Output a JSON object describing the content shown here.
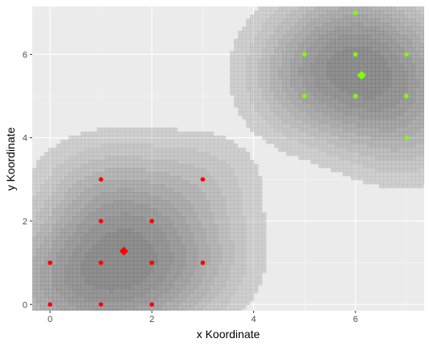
{
  "chart_data": {
    "type": "scatter",
    "title": "",
    "xlabel": "x Koordinate",
    "ylabel": "y Koordinate",
    "xlim": [
      -0.35,
      7.35
    ],
    "ylim": [
      -0.15,
      7.15
    ],
    "x_ticks": [
      0,
      2,
      4,
      6
    ],
    "y_ticks": [
      0,
      2,
      4,
      6
    ],
    "grid": true,
    "legend": "none",
    "background": "#ebebeb",
    "density_fill": "#5a5a5a",
    "series": [
      {
        "color": "#ff0000",
        "points": [
          [
            0,
            1
          ],
          [
            0,
            0
          ],
          [
            1,
            3
          ],
          [
            1,
            2
          ],
          [
            1,
            1
          ],
          [
            1,
            0
          ],
          [
            2,
            2
          ],
          [
            2,
            1
          ],
          [
            2,
            0
          ],
          [
            3,
            3
          ],
          [
            3,
            1
          ]
        ],
        "center": [
          1.45,
          1.28
        ]
      },
      {
        "color": "#7fff00",
        "points": [
          [
            6,
            7
          ],
          [
            5,
            6
          ],
          [
            6,
            6
          ],
          [
            7,
            6
          ],
          [
            5,
            5
          ],
          [
            6,
            5
          ],
          [
            7,
            5
          ],
          [
            7,
            4
          ]
        ],
        "center": [
          6.12,
          5.5
        ]
      }
    ]
  }
}
